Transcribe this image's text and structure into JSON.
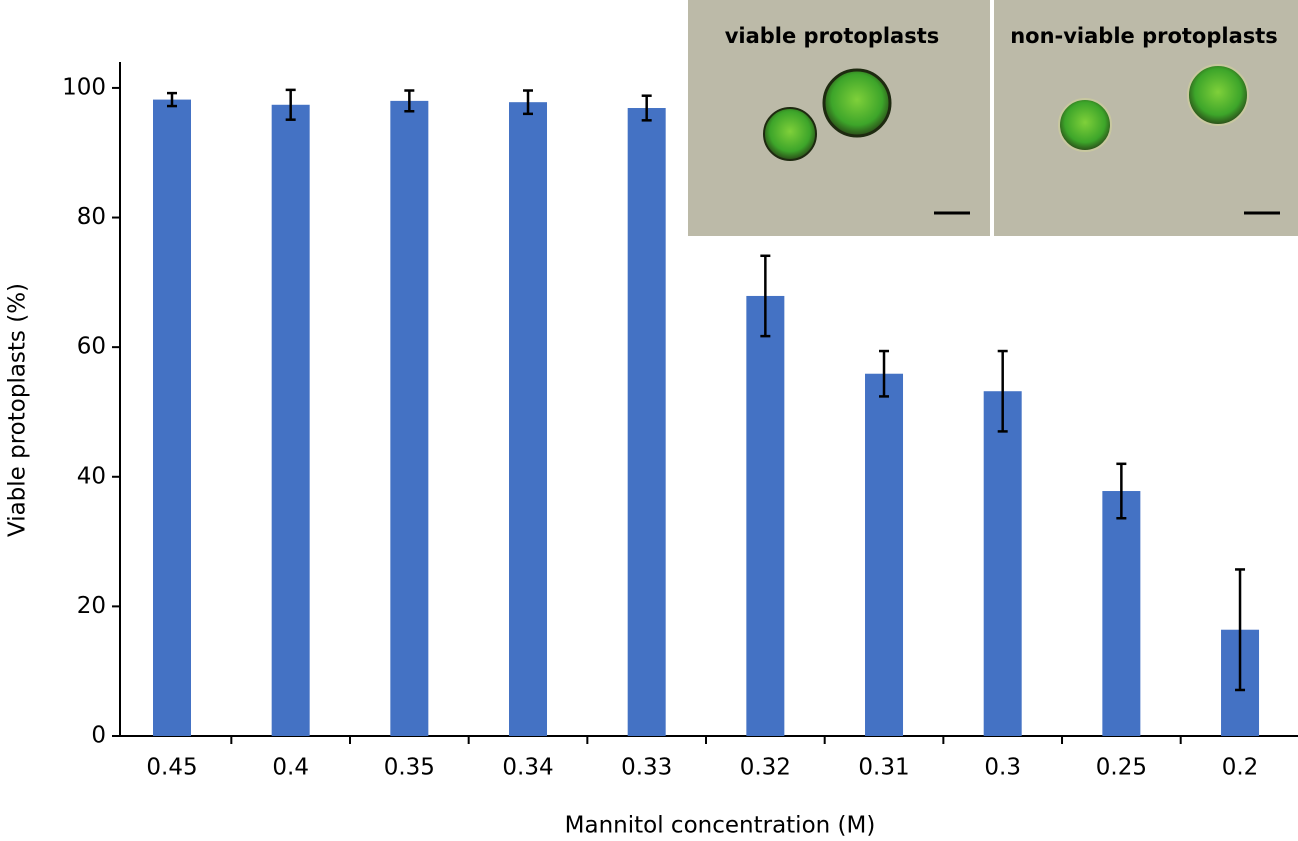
{
  "chart_data": {
    "type": "bar",
    "xlabel": "Mannitol concentration (M)",
    "ylabel": "Viable protoplasts (%)",
    "categories": [
      "0.45",
      "0.4",
      "0.35",
      "0.34",
      "0.33",
      "0.32",
      "0.31",
      "0.3",
      "0.25",
      "0.2"
    ],
    "values": [
      98.2,
      97.4,
      98.0,
      97.8,
      96.9,
      67.9,
      55.9,
      53.2,
      37.8,
      16.4
    ],
    "errors": [
      1.0,
      2.3,
      1.6,
      1.8,
      1.9,
      6.2,
      3.5,
      6.2,
      4.2,
      9.3
    ],
    "color": "#4472c4",
    "ylim": [
      0,
      104
    ],
    "yticks": [
      0,
      20,
      40,
      60,
      80,
      100
    ],
    "insets": [
      "viable protoplasts",
      "non-viable protoplasts"
    ]
  }
}
